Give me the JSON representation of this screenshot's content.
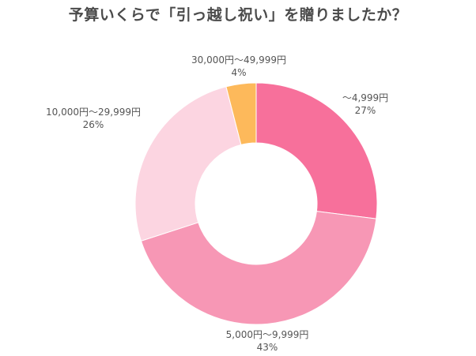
{
  "chart_data": {
    "type": "pie",
    "title": "予算いくらで「引っ越し祝い」を贈りましたか？",
    "donut": true,
    "slices": [
      {
        "label": "～4,999円",
        "value": 27,
        "value_label": "27%",
        "color": "#f7709b"
      },
      {
        "label": "5,000円～9,999円",
        "value": 43,
        "value_label": "43%",
        "color": "#f797b5"
      },
      {
        "label": "10,000円～29,999円",
        "value": 26,
        "value_label": "26%",
        "color": "#fcd5e1"
      },
      {
        "label": "30,000円～49,999円",
        "value": 4,
        "value_label": "4%",
        "color": "#fdb95b"
      }
    ]
  }
}
